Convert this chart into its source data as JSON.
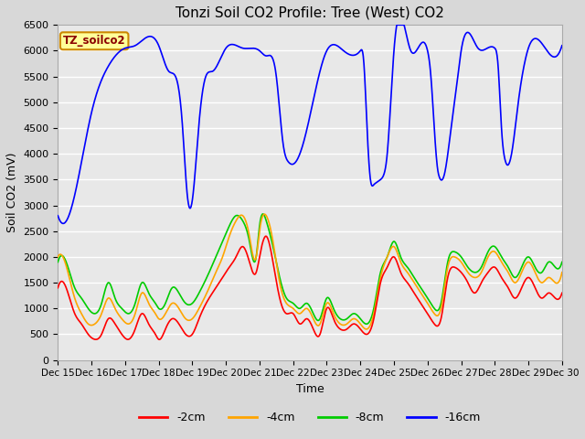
{
  "title": "Tonzi Soil CO2 Profile: Tree (West) CO2",
  "ylabel": "Soil CO2 (mV)",
  "xlabel": "Time",
  "box_label": "TZ_soilco2",
  "ylim": [
    0,
    6500
  ],
  "yticks": [
    0,
    500,
    1000,
    1500,
    2000,
    2500,
    3000,
    3500,
    4000,
    4500,
    5000,
    5500,
    6000,
    6500
  ],
  "legend": [
    {
      "label": "-2cm",
      "color": "#ff0000"
    },
    {
      "label": "-4cm",
      "color": "#ffa500"
    },
    {
      "label": "-8cm",
      "color": "#00cc00"
    },
    {
      "label": "-16cm",
      "color": "#0000ff"
    }
  ],
  "fig_bg": "#d8d8d8",
  "plot_bg": "#e8e8e8",
  "blue_keypoints": [
    [
      0,
      2800
    ],
    [
      0.5,
      3200
    ],
    [
      1.0,
      4800
    ],
    [
      1.5,
      5700
    ],
    [
      2.0,
      6050
    ],
    [
      2.3,
      6100
    ],
    [
      3.0,
      6100
    ],
    [
      3.3,
      5600
    ],
    [
      3.5,
      5500
    ],
    [
      3.7,
      4600
    ],
    [
      3.85,
      3200
    ],
    [
      4.0,
      3100
    ],
    [
      4.2,
      4600
    ],
    [
      4.4,
      5500
    ],
    [
      4.6,
      5600
    ],
    [
      5.0,
      6050
    ],
    [
      5.5,
      6050
    ],
    [
      6.0,
      6000
    ],
    [
      6.2,
      5900
    ],
    [
      6.5,
      5500
    ],
    [
      6.7,
      4200
    ],
    [
      6.85,
      3850
    ],
    [
      7.0,
      3800
    ],
    [
      7.3,
      4200
    ],
    [
      8.0,
      6000
    ],
    [
      8.5,
      6000
    ],
    [
      9.0,
      6000
    ],
    [
      9.1,
      5800
    ],
    [
      9.2,
      4500
    ],
    [
      9.3,
      3500
    ],
    [
      9.4,
      3400
    ],
    [
      9.5,
      3450
    ],
    [
      9.6,
      3500
    ],
    [
      9.7,
      3600
    ],
    [
      9.8,
      4000
    ],
    [
      10.0,
      6000
    ],
    [
      10.5,
      6000
    ],
    [
      11.0,
      6000
    ],
    [
      11.1,
      5500
    ],
    [
      11.2,
      4500
    ],
    [
      11.3,
      3700
    ],
    [
      11.35,
      3550
    ],
    [
      11.5,
      3600
    ],
    [
      11.7,
      4500
    ],
    [
      11.9,
      5500
    ],
    [
      12.0,
      6000
    ],
    [
      12.5,
      6050
    ],
    [
      13.0,
      6050
    ],
    [
      13.1,
      5700
    ],
    [
      13.2,
      4500
    ],
    [
      13.3,
      3900
    ],
    [
      13.35,
      3800
    ],
    [
      13.5,
      4000
    ],
    [
      13.7,
      5000
    ],
    [
      13.9,
      5800
    ],
    [
      14.0,
      6050
    ],
    [
      14.5,
      6050
    ],
    [
      15.0,
      6100
    ]
  ],
  "red_keypoints": [
    [
      0,
      1400
    ],
    [
      0.3,
      1300
    ],
    [
      0.5,
      900
    ],
    [
      0.7,
      700
    ],
    [
      0.9,
      500
    ],
    [
      1.1,
      400
    ],
    [
      1.3,
      500
    ],
    [
      1.5,
      800
    ],
    [
      1.7,
      700
    ],
    [
      1.9,
      500
    ],
    [
      2.1,
      400
    ],
    [
      2.3,
      600
    ],
    [
      2.5,
      900
    ],
    [
      2.7,
      700
    ],
    [
      2.9,
      500
    ],
    [
      3.0,
      400
    ],
    [
      3.2,
      600
    ],
    [
      3.4,
      800
    ],
    [
      3.6,
      700
    ],
    [
      3.8,
      500
    ],
    [
      4.0,
      500
    ],
    [
      4.2,
      800
    ],
    [
      4.5,
      1200
    ],
    [
      4.7,
      1400
    ],
    [
      4.9,
      1600
    ],
    [
      5.1,
      1800
    ],
    [
      5.3,
      2000
    ],
    [
      5.5,
      2200
    ],
    [
      5.7,
      1900
    ],
    [
      5.9,
      1700
    ],
    [
      6.0,
      2000
    ],
    [
      6.2,
      2400
    ],
    [
      6.4,
      1900
    ],
    [
      6.6,
      1200
    ],
    [
      6.8,
      900
    ],
    [
      7.0,
      900
    ],
    [
      7.2,
      700
    ],
    [
      7.4,
      800
    ],
    [
      7.6,
      600
    ],
    [
      7.8,
      500
    ],
    [
      8.0,
      1000
    ],
    [
      8.2,
      800
    ],
    [
      8.4,
      600
    ],
    [
      8.6,
      600
    ],
    [
      8.8,
      700
    ],
    [
      9.0,
      600
    ],
    [
      9.2,
      500
    ],
    [
      9.4,
      800
    ],
    [
      9.6,
      1500
    ],
    [
      9.8,
      1800
    ],
    [
      10.0,
      2000
    ],
    [
      10.2,
      1700
    ],
    [
      10.4,
      1500
    ],
    [
      10.6,
      1300
    ],
    [
      10.8,
      1100
    ],
    [
      11.0,
      900
    ],
    [
      11.2,
      700
    ],
    [
      11.4,
      800
    ],
    [
      11.6,
      1600
    ],
    [
      11.8,
      1800
    ],
    [
      12.0,
      1700
    ],
    [
      12.2,
      1500
    ],
    [
      12.4,
      1300
    ],
    [
      12.6,
      1500
    ],
    [
      12.8,
      1700
    ],
    [
      13.0,
      1800
    ],
    [
      13.2,
      1600
    ],
    [
      13.4,
      1400
    ],
    [
      13.6,
      1200
    ],
    [
      13.8,
      1400
    ],
    [
      14.0,
      1600
    ],
    [
      14.2,
      1400
    ],
    [
      14.4,
      1200
    ],
    [
      14.6,
      1300
    ],
    [
      14.8,
      1200
    ],
    [
      15.0,
      1300
    ]
  ],
  "orange_keypoints": [
    [
      0,
      2000
    ],
    [
      0.3,
      1700
    ],
    [
      0.5,
      1200
    ],
    [
      0.7,
      900
    ],
    [
      0.9,
      700
    ],
    [
      1.1,
      700
    ],
    [
      1.3,
      900
    ],
    [
      1.5,
      1200
    ],
    [
      1.7,
      1000
    ],
    [
      1.9,
      800
    ],
    [
      2.1,
      700
    ],
    [
      2.3,
      900
    ],
    [
      2.5,
      1300
    ],
    [
      2.7,
      1100
    ],
    [
      2.9,
      900
    ],
    [
      3.0,
      800
    ],
    [
      3.2,
      900
    ],
    [
      3.4,
      1100
    ],
    [
      3.6,
      1000
    ],
    [
      3.8,
      800
    ],
    [
      4.0,
      800
    ],
    [
      4.2,
      1000
    ],
    [
      4.5,
      1400
    ],
    [
      4.7,
      1700
    ],
    [
      4.9,
      2000
    ],
    [
      5.1,
      2400
    ],
    [
      5.3,
      2700
    ],
    [
      5.5,
      2800
    ],
    [
      5.7,
      2400
    ],
    [
      5.9,
      2000
    ],
    [
      6.0,
      2500
    ],
    [
      6.2,
      2800
    ],
    [
      6.4,
      2300
    ],
    [
      6.6,
      1500
    ],
    [
      6.8,
      1100
    ],
    [
      7.0,
      1000
    ],
    [
      7.2,
      900
    ],
    [
      7.4,
      1000
    ],
    [
      7.6,
      800
    ],
    [
      7.8,
      700
    ],
    [
      8.0,
      1100
    ],
    [
      8.2,
      900
    ],
    [
      8.4,
      700
    ],
    [
      8.6,
      700
    ],
    [
      8.8,
      800
    ],
    [
      9.0,
      700
    ],
    [
      9.2,
      600
    ],
    [
      9.4,
      900
    ],
    [
      9.6,
      1600
    ],
    [
      9.8,
      2000
    ],
    [
      10.0,
      2200
    ],
    [
      10.2,
      1900
    ],
    [
      10.4,
      1700
    ],
    [
      10.6,
      1500
    ],
    [
      10.8,
      1300
    ],
    [
      11.0,
      1100
    ],
    [
      11.2,
      900
    ],
    [
      11.4,
      1000
    ],
    [
      11.6,
      1800
    ],
    [
      11.8,
      2000
    ],
    [
      12.0,
      1900
    ],
    [
      12.2,
      1700
    ],
    [
      12.4,
      1600
    ],
    [
      12.6,
      1700
    ],
    [
      12.8,
      2000
    ],
    [
      13.0,
      2100
    ],
    [
      13.2,
      1900
    ],
    [
      13.4,
      1700
    ],
    [
      13.6,
      1500
    ],
    [
      13.8,
      1700
    ],
    [
      14.0,
      1900
    ],
    [
      14.2,
      1700
    ],
    [
      14.4,
      1500
    ],
    [
      14.6,
      1600
    ],
    [
      14.8,
      1500
    ],
    [
      15.0,
      1700
    ]
  ],
  "green_keypoints": [
    [
      0,
      1900
    ],
    [
      0.3,
      1800
    ],
    [
      0.5,
      1400
    ],
    [
      0.7,
      1200
    ],
    [
      0.9,
      1000
    ],
    [
      1.1,
      900
    ],
    [
      1.3,
      1100
    ],
    [
      1.5,
      1500
    ],
    [
      1.7,
      1200
    ],
    [
      1.9,
      1000
    ],
    [
      2.1,
      900
    ],
    [
      2.3,
      1100
    ],
    [
      2.5,
      1500
    ],
    [
      2.7,
      1300
    ],
    [
      2.9,
      1100
    ],
    [
      3.0,
      1000
    ],
    [
      3.2,
      1100
    ],
    [
      3.4,
      1400
    ],
    [
      3.6,
      1300
    ],
    [
      3.8,
      1100
    ],
    [
      4.0,
      1100
    ],
    [
      4.2,
      1300
    ],
    [
      4.5,
      1700
    ],
    [
      4.7,
      2000
    ],
    [
      4.9,
      2300
    ],
    [
      5.1,
      2600
    ],
    [
      5.3,
      2800
    ],
    [
      5.5,
      2700
    ],
    [
      5.7,
      2300
    ],
    [
      5.9,
      2000
    ],
    [
      6.0,
      2600
    ],
    [
      6.2,
      2700
    ],
    [
      6.4,
      2200
    ],
    [
      6.6,
      1600
    ],
    [
      6.8,
      1200
    ],
    [
      7.0,
      1100
    ],
    [
      7.2,
      1000
    ],
    [
      7.4,
      1100
    ],
    [
      7.6,
      900
    ],
    [
      7.8,
      800
    ],
    [
      8.0,
      1200
    ],
    [
      8.2,
      1000
    ],
    [
      8.4,
      800
    ],
    [
      8.6,
      800
    ],
    [
      8.8,
      900
    ],
    [
      9.0,
      800
    ],
    [
      9.2,
      700
    ],
    [
      9.4,
      1000
    ],
    [
      9.6,
      1700
    ],
    [
      9.8,
      2000
    ],
    [
      10.0,
      2300
    ],
    [
      10.2,
      2000
    ],
    [
      10.4,
      1800
    ],
    [
      10.6,
      1600
    ],
    [
      10.8,
      1400
    ],
    [
      11.0,
      1200
    ],
    [
      11.2,
      1000
    ],
    [
      11.4,
      1100
    ],
    [
      11.6,
      1900
    ],
    [
      11.8,
      2100
    ],
    [
      12.0,
      2000
    ],
    [
      12.2,
      1800
    ],
    [
      12.4,
      1700
    ],
    [
      12.6,
      1800
    ],
    [
      12.8,
      2100
    ],
    [
      13.0,
      2200
    ],
    [
      13.2,
      2000
    ],
    [
      13.4,
      1800
    ],
    [
      13.6,
      1600
    ],
    [
      13.8,
      1800
    ],
    [
      14.0,
      2000
    ],
    [
      14.2,
      1800
    ],
    [
      14.4,
      1700
    ],
    [
      14.6,
      1900
    ],
    [
      14.8,
      1800
    ],
    [
      15.0,
      1900
    ]
  ]
}
